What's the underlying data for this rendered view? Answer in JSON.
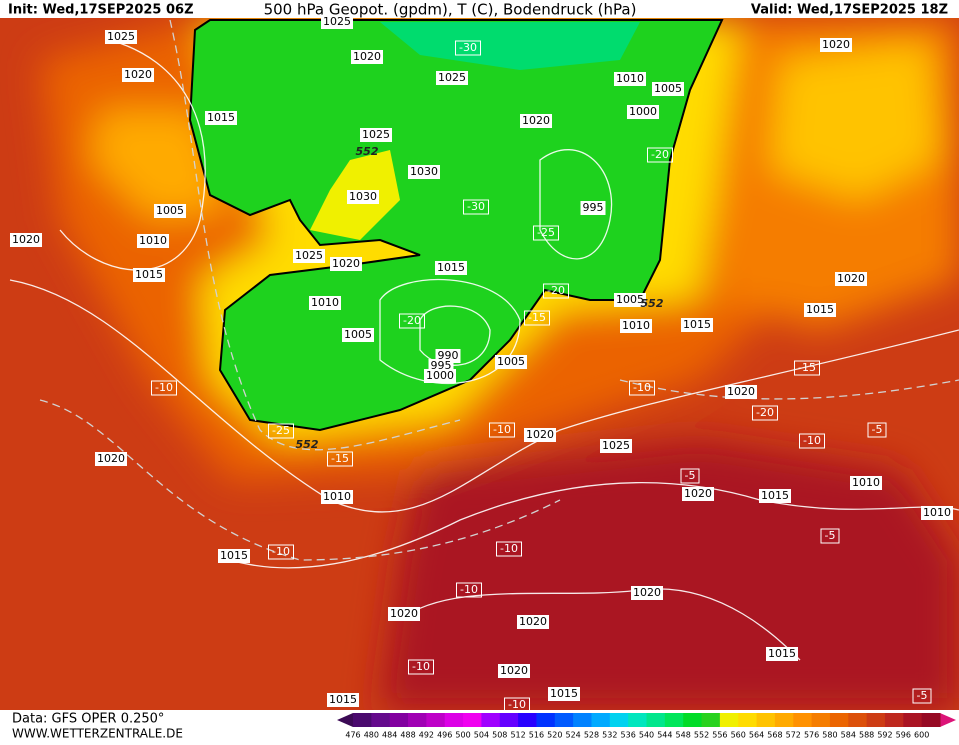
{
  "header": {
    "init": "Init: Wed,17SEP2025 06Z",
    "title": "500 hPa Geopot. (gpdm), T (C), Bodendruck (hPa)",
    "valid": "Valid: Wed,17SEP2025 18Z"
  },
  "footer": {
    "data": "Data: GFS OPER 0.250°",
    "site": "WWW.WETTERZENTRALE.DE"
  },
  "colorbar": {
    "labels": [
      "476",
      "480",
      "484",
      "488",
      "492",
      "496",
      "500",
      "504",
      "508",
      "512",
      "516",
      "520",
      "524",
      "528",
      "532",
      "536",
      "540",
      "544",
      "548",
      "552",
      "556",
      "560",
      "564",
      "568",
      "572",
      "576",
      "580",
      "584",
      "588",
      "592",
      "596",
      "600"
    ],
    "colors": [
      "#4a0a6e",
      "#640a8c",
      "#8200a0",
      "#a000b4",
      "#be00c8",
      "#dc00e6",
      "#f000f0",
      "#a000ff",
      "#6400ff",
      "#2800ff",
      "#0032ff",
      "#005aff",
      "#0082ff",
      "#00aaff",
      "#00d2f0",
      "#00e6be",
      "#00e68c",
      "#00e65a",
      "#00dc28",
      "#28d21e",
      "#f0f000",
      "#ffdc00",
      "#ffc300",
      "#ffaa00",
      "#ff9100",
      "#f57d00",
      "#eb6400",
      "#dc500a",
      "#cd3c14",
      "#be281e",
      "#aa1423",
      "#960a23"
    ]
  },
  "map_labels": [
    "1025",
    "1025",
    "1020",
    "-30",
    "1020",
    "1025",
    "1010",
    "1005",
    "1020",
    "1015",
    "1020",
    "1000",
    "1025",
    "552",
    "-20",
    "1030",
    "1030",
    "-30",
    "995",
    "1005",
    "1010",
    "-25",
    "1020",
    "1025",
    "1020",
    "1015",
    "1015",
    "1020",
    "-20",
    "1005",
    "552",
    "1010",
    "-15",
    "1015",
    "-20",
    "1010",
    "1015",
    "1005",
    "990",
    "995",
    "1000",
    "1005",
    "-15",
    "-10",
    "-10",
    "1020",
    "-20",
    "-25",
    "552",
    "-10",
    "1020",
    "-10",
    "-5",
    "1025",
    "-15",
    "1020",
    "-5",
    "1010",
    "1010",
    "1020",
    "1015",
    "1010",
    "-5",
    "-10",
    "-10",
    "1015",
    "-10",
    "1020",
    "1020",
    "1020",
    "1015",
    "-10",
    "1020",
    "1015",
    "1015",
    "-10",
    "-5"
  ]
}
